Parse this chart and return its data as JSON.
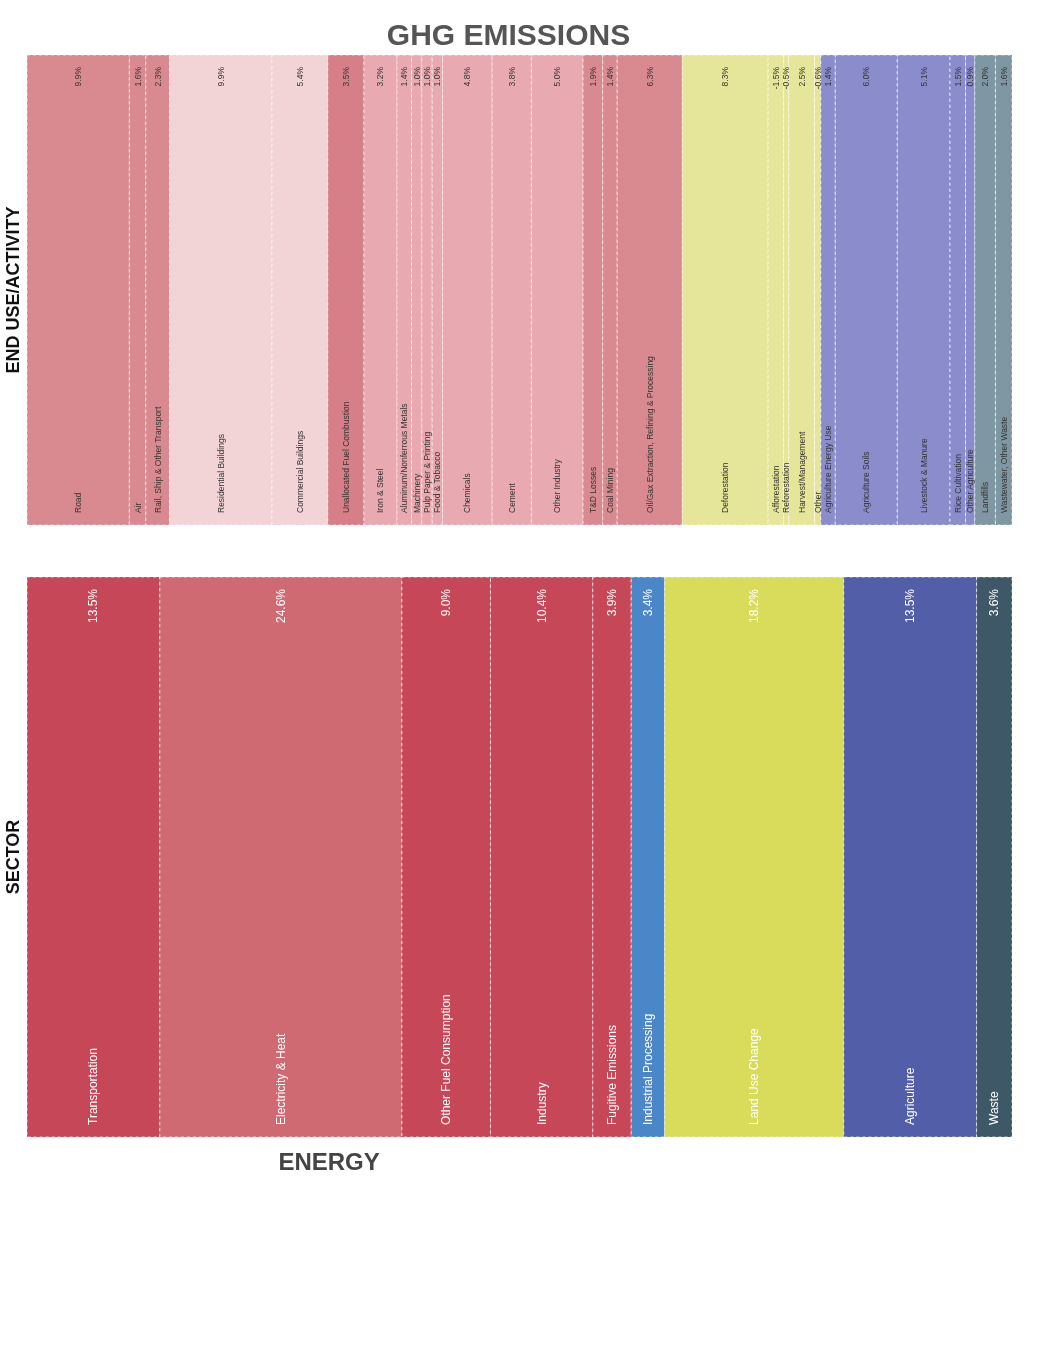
{
  "chart_data": [
    {
      "type": "other",
      "title": "GHG EMISSIONS",
      "ylabel": "END USE/ACTIVITY",
      "categories": [
        "Road",
        "Air",
        "Rail, Ship & Other Transport",
        "Residential Buildings",
        "Commercial Buildings",
        "Unallocated Fuel Combustion",
        "Iron & Steel",
        "Aluminum/Nonferrous Metals",
        "Machinery",
        "Pulp Paper & Printing",
        "Food & Tobacco",
        "Chemicals",
        "Cement",
        "Other Industry",
        "T&D Losses",
        "Coal Mining",
        "Oil/Gax Extraction, Refining & Processing",
        "Deforestation",
        "Afforestation",
        "Reforestation",
        "Harvest/Management",
        "Other",
        "Agriculture Energy Use",
        "Agriculture Soils",
        "Livestock & Manure",
        "Rice Cultivation",
        "Other Agriculture",
        "Landfills",
        "Wastewater, Other Waste"
      ],
      "values": [
        9.9,
        1.6,
        2.3,
        9.9,
        5.4,
        3.5,
        3.2,
        1.4,
        1.0,
        1.0,
        1.0,
        4.8,
        3.8,
        5.0,
        1.9,
        1.4,
        6.3,
        8.3,
        -1.5,
        -0.5,
        2.5,
        -0.6,
        1.4,
        6.0,
        5.1,
        1.5,
        0.9,
        2.0,
        1.6
      ],
      "value_labels": [
        "9.9%",
        "1.6%",
        "2.3%",
        "9.9%",
        "5.4%",
        "3.5%",
        "3.2%",
        "1.4%",
        "1.0%",
        "1.0%",
        "1.0%",
        "4.8%",
        "3.8%",
        "5.0%",
        "1.9%",
        "1.4%",
        "6.3%",
        "8.3%",
        "-1.5%",
        "-0.5%",
        "2.5%",
        "-0.6%",
        "1.4%",
        "6.0%",
        "5.1%",
        "1.5%",
        "0.9%",
        "2.0%",
        "1.6%"
      ],
      "colors": [
        "#d88a90",
        "#d88a90",
        "#d88a90",
        "#f2d3d6",
        "#f2d3d6",
        "#d77f88",
        "#e8aab0",
        "#e8aab0",
        "#e8aab0",
        "#e8aab0",
        "#e8aab0",
        "#e8aab0",
        "#e8aab0",
        "#e8aab0",
        "#d88a90",
        "#d88a90",
        "#d88a90",
        "#e6e69a",
        "#e6e69a",
        "#e6e69a",
        "#e6e69a",
        "#e6e69a",
        "#8a8ccc",
        "#8a8ccc",
        "#8a8ccc",
        "#8a8ccc",
        "#8a8ccc",
        "#7f97a3",
        "#7f97a3"
      ]
    },
    {
      "type": "other",
      "ylabel": "SECTOR",
      "annotations": [
        "ENERGY"
      ],
      "categories": [
        "Transportation",
        "Electricity & Heat",
        "Other Fuel Consumption",
        "Industry",
        "Fugitive Emissions",
        "Industrial Processing",
        "Land Use Change",
        "Agriculture",
        "Waste"
      ],
      "values": [
        13.5,
        24.6,
        9.0,
        10.4,
        3.9,
        3.4,
        18.2,
        13.5,
        3.6
      ],
      "value_labels": [
        "13.5%",
        "24.6%",
        "9.0%",
        "10.4%",
        "3.9%",
        "3.4%",
        "18.2%",
        "13.5%",
        "3.6%"
      ],
      "colors": [
        "#c64858",
        "#d06a72",
        "#c64858",
        "#c64858",
        "#c64858",
        "#4a86c8",
        "#d8dc5a",
        "#525ea8",
        "#3e5868"
      ]
    }
  ]
}
